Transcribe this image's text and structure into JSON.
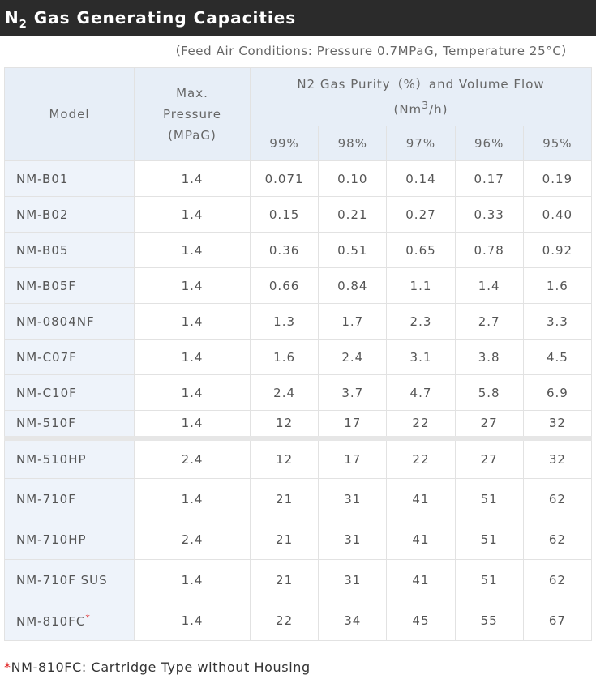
{
  "header": {
    "title_main": "N",
    "title_sub": "2",
    "title_rest": "Gas Generating Capacities"
  },
  "note": "（Feed Air Conditions: Pressure 0.7MPaG, Temperature 25°C）",
  "table": {
    "columns": {
      "model": "Model",
      "pressure": "Max. Pressure (MPaG)",
      "flow": "N2 Gas Purity（%）and Volume Flow",
      "flow_unit_pre": "(Nm",
      "flow_unit_sup": "3",
      "flow_unit_post": "/h)",
      "purities": [
        "99%",
        "98%",
        "97%",
        "96%",
        "95%"
      ]
    },
    "rows": [
      [
        "NM-B01",
        "1.4",
        "0.071",
        "0.10",
        "0.14",
        "0.17",
        "0.19"
      ],
      [
        "NM-B02",
        "1.4",
        "0.15",
        "0.21",
        "0.27",
        "0.33",
        "0.40"
      ],
      [
        "NM-B05",
        "1.4",
        "0.36",
        "0.51",
        "0.65",
        "0.78",
        "0.92"
      ],
      [
        "NM-B05F",
        "1.4",
        "0.66",
        "0.84",
        "1.1",
        "1.4",
        "1.6"
      ],
      [
        "NM-0804NF",
        "1.4",
        "1.3",
        "1.7",
        "2.3",
        "2.7",
        "3.3"
      ],
      [
        "NM-C07F",
        "1.4",
        "1.6",
        "2.4",
        "3.1",
        "3.8",
        "4.5"
      ],
      [
        "NM-C10F",
        "1.4",
        "2.4",
        "3.7",
        "4.7",
        "5.8",
        "6.9"
      ],
      [
        "NM-510F",
        "1.4",
        "12",
        "17",
        "22",
        "27",
        "32"
      ],
      [
        "NM-510HP",
        "2.4",
        "12",
        "17",
        "22",
        "27",
        "32"
      ],
      [
        "NM-710F",
        "1.4",
        "21",
        "31",
        "41",
        "51",
        "62"
      ],
      [
        "NM-710HP",
        "2.4",
        "21",
        "31",
        "41",
        "51",
        "62"
      ],
      [
        "NM-710F SUS",
        "1.4",
        "21",
        "31",
        "41",
        "51",
        "62"
      ],
      [
        "NM-810FC",
        "1.4",
        "22",
        "34",
        "45",
        "55",
        "67"
      ]
    ]
  },
  "footnote": {
    "mark": "*",
    "text": "NM-810FC: Cartridge Type without Housing"
  }
}
